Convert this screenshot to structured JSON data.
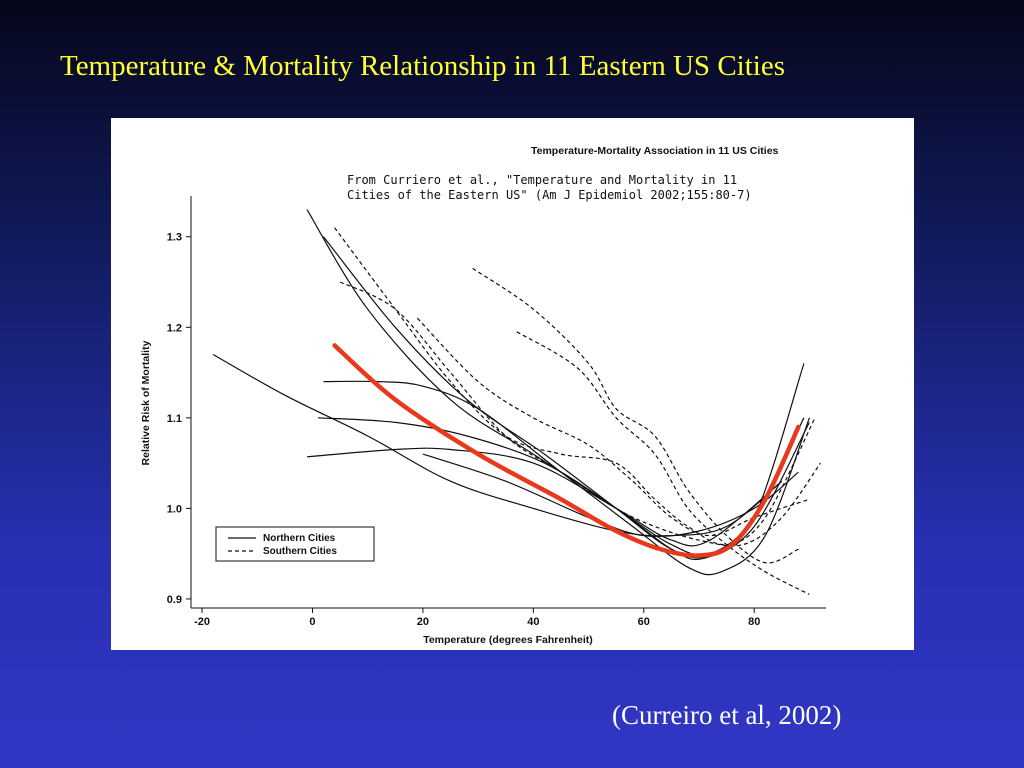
{
  "slide": {
    "title": "Temperature & Mortality Relationship in 11 Eastern US Cities",
    "citation": "(Curreiro et al, 2002)"
  },
  "colors": {
    "title": "#ffff33",
    "highlight": "#e8391c",
    "lines": "#111111"
  },
  "chart_data": {
    "type": "line",
    "title": "Temperature-Mortality Association in 11 US Cities",
    "note_line1": "From Curriero et al., \"Temperature and Mortality in 11",
    "note_line2": "Cities of the Eastern US\" (Am J Epidemiol 2002;155:80-7)",
    "xlabel": "Temperature (degrees Fahrenheit)",
    "ylabel": "Relative Risk of Mortality",
    "xlim": [
      -22,
      93
    ],
    "ylim": [
      0.89,
      1.345
    ],
    "xticks": [
      -20,
      0,
      20,
      40,
      60,
      80
    ],
    "yticks": [
      0.9,
      1.0,
      1.1,
      1.2,
      1.3
    ],
    "legend": {
      "placement": "bottom-left",
      "items": [
        {
          "label": "Northern Cities",
          "style": "solid"
        },
        {
          "label": "Southern Cities",
          "style": "dashed"
        }
      ]
    },
    "series": [
      {
        "style": "solid",
        "points": [
          [
            -18,
            1.17
          ],
          [
            -5,
            1.125
          ],
          [
            10,
            1.08
          ],
          [
            25,
            1.03
          ],
          [
            40,
            1.0
          ],
          [
            55,
            0.975
          ],
          [
            65,
            0.97
          ],
          [
            75,
            0.98
          ],
          [
            85,
            1.03
          ]
        ]
      },
      {
        "style": "solid",
        "points": [
          [
            -1,
            1.33
          ],
          [
            10,
            1.22
          ],
          [
            25,
            1.12
          ],
          [
            40,
            1.06
          ],
          [
            55,
            1.0
          ],
          [
            65,
            0.96
          ],
          [
            72,
            0.95
          ],
          [
            80,
            0.99
          ],
          [
            89,
            1.1
          ]
        ]
      },
      {
        "style": "solid",
        "points": [
          [
            2,
            1.3
          ],
          [
            15,
            1.2
          ],
          [
            28,
            1.12
          ],
          [
            42,
            1.06
          ],
          [
            55,
            1.0
          ],
          [
            65,
            0.955
          ],
          [
            72,
            0.948
          ],
          [
            80,
            0.99
          ],
          [
            89,
            1.16
          ]
        ]
      },
      {
        "style": "solid",
        "points": [
          [
            2,
            1.14
          ],
          [
            12,
            1.14
          ],
          [
            20,
            1.135
          ],
          [
            30,
            1.11
          ],
          [
            45,
            1.04
          ],
          [
            58,
            0.98
          ],
          [
            68,
            0.935
          ],
          [
            74,
            0.93
          ],
          [
            82,
            0.97
          ],
          [
            90,
            1.1
          ]
        ]
      },
      {
        "style": "solid",
        "points": [
          [
            1,
            1.1
          ],
          [
            15,
            1.095
          ],
          [
            28,
            1.08
          ],
          [
            42,
            1.05
          ],
          [
            55,
            1.0
          ],
          [
            65,
            0.955
          ],
          [
            71,
            0.945
          ],
          [
            80,
            0.98
          ],
          [
            90,
            1.095
          ]
        ]
      },
      {
        "style": "solid",
        "points": [
          [
            -1,
            1.057
          ],
          [
            15,
            1.065
          ],
          [
            25,
            1.065
          ],
          [
            40,
            1.05
          ],
          [
            55,
            1.0
          ],
          [
            65,
            0.965
          ],
          [
            72,
            0.965
          ],
          [
            85,
            1.03
          ]
        ]
      },
      {
        "style": "solid",
        "points": [
          [
            20,
            1.06
          ],
          [
            35,
            1.03
          ],
          [
            50,
            0.99
          ],
          [
            60,
            0.97
          ],
          [
            70,
            0.975
          ],
          [
            80,
            1.0
          ],
          [
            88,
            1.04
          ]
        ]
      },
      {
        "style": "dashed",
        "points": [
          [
            4,
            1.31
          ],
          [
            15,
            1.22
          ],
          [
            25,
            1.14
          ],
          [
            35,
            1.08
          ],
          [
            45,
            1.06
          ],
          [
            55,
            1.05
          ],
          [
            62,
            1.01
          ],
          [
            68,
            0.98
          ],
          [
            75,
            0.96
          ],
          [
            82,
            0.99
          ],
          [
            91,
            1.1
          ]
        ]
      },
      {
        "style": "dashed",
        "points": [
          [
            5,
            1.25
          ],
          [
            15,
            1.22
          ],
          [
            25,
            1.15
          ],
          [
            35,
            1.08
          ],
          [
            45,
            1.04
          ],
          [
            55,
            1.0
          ],
          [
            62,
            0.98
          ],
          [
            70,
            0.965
          ],
          [
            78,
            0.96
          ],
          [
            85,
            0.99
          ],
          [
            92,
            1.05
          ]
        ]
      },
      {
        "style": "dashed",
        "points": [
          [
            19,
            1.21
          ],
          [
            30,
            1.14
          ],
          [
            40,
            1.1
          ],
          [
            50,
            1.07
          ],
          [
            58,
            1.03
          ],
          [
            65,
            0.99
          ],
          [
            72,
            0.97
          ],
          [
            80,
            0.99
          ],
          [
            90,
            1.01
          ]
        ]
      },
      {
        "style": "dashed",
        "points": [
          [
            29,
            1.265
          ],
          [
            40,
            1.22
          ],
          [
            50,
            1.16
          ],
          [
            55,
            1.11
          ],
          [
            62,
            1.08
          ],
          [
            68,
            1.02
          ],
          [
            75,
            0.97
          ],
          [
            82,
            0.94
          ],
          [
            88,
            0.955
          ]
        ]
      },
      {
        "style": "dashed",
        "points": [
          [
            37,
            1.195
          ],
          [
            48,
            1.155
          ],
          [
            55,
            1.1
          ],
          [
            62,
            1.06
          ],
          [
            68,
            1.0
          ],
          [
            75,
            0.96
          ],
          [
            82,
            0.93
          ],
          [
            90,
            0.905
          ]
        ]
      }
    ],
    "highlight_curve": {
      "color": "#e8391c",
      "points": [
        [
          4,
          1.18
        ],
        [
          15,
          1.12
        ],
        [
          30,
          1.06
        ],
        [
          45,
          1.01
        ],
        [
          55,
          0.975
        ],
        [
          63,
          0.955
        ],
        [
          70,
          0.948
        ],
        [
          76,
          0.96
        ],
        [
          82,
          1.01
        ],
        [
          88,
          1.09
        ]
      ]
    }
  }
}
